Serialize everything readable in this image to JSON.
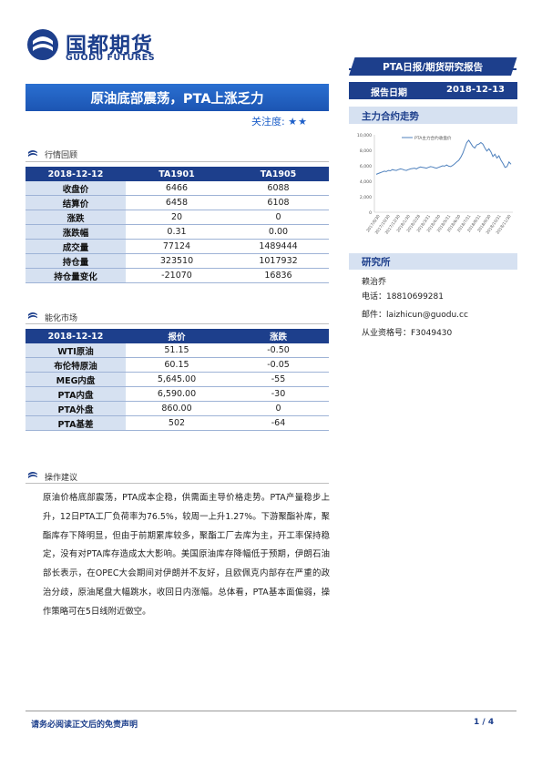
{
  "brand": {
    "name_cn": "国都期货",
    "name_en": "GUODU FUTURES"
  },
  "header": {
    "report_type": "PTA日报/期货研究报告",
    "date_label": "报告日期",
    "date_value": "2018-12-13"
  },
  "title": "原油底部震荡，PTA上涨乏力",
  "attention": {
    "label": "关注度:",
    "stars": "★★"
  },
  "market_review": {
    "section_title": "行情回顾",
    "headers": [
      "2018-12-12",
      "TA1901",
      "TA1905"
    ],
    "rows": [
      {
        "label": "收盘价",
        "v1": "6466",
        "v2": "6088"
      },
      {
        "label": "结算价",
        "v1": "6458",
        "v2": "6108"
      },
      {
        "label": "涨跌",
        "v1": "20",
        "v2": "0"
      },
      {
        "label": "涨跌幅",
        "v1": "0.31",
        "v2": "0.00"
      },
      {
        "label": "成交量",
        "v1": "77124",
        "v2": "1489444"
      },
      {
        "label": "持仓量",
        "v1": "323510",
        "v2": "1017932"
      },
      {
        "label": "持仓量变化",
        "v1": "-21070",
        "v2": "16836"
      }
    ]
  },
  "energy_market": {
    "section_title": "能化市场",
    "headers": [
      "2018-12-12",
      "报价",
      "涨跌"
    ],
    "rows": [
      {
        "label": "WTI原油",
        "v1": "51.15",
        "v2": "-0.50"
      },
      {
        "label": "布伦特原油",
        "v1": "60.15",
        "v2": "-0.05"
      },
      {
        "label": "MEG内盘",
        "v1": "5,645.00",
        "v2": "-55"
      },
      {
        "label": "PTA内盘",
        "v1": "6,590.00",
        "v2": "-30"
      },
      {
        "label": "PTA外盘",
        "v1": "860.00",
        "v2": "0"
      },
      {
        "label": "PTA基差",
        "v1": "502",
        "v2": "-64"
      }
    ]
  },
  "advice": {
    "section_title": "操作建议",
    "text": "原油价格底部震荡，PTA成本企稳，供需面主导价格走势。PTA产量稳步上升，12日PTA工厂负荷率为76.5%，较周一上升1.27%。下游聚酯补库，聚酯库存下降明显，但由于前期累库较多，聚酯工厂去库为主，开工率保持稳定，没有对PTA库存造成太大影响。美国原油库存降幅低于预期，伊朗石油部长表示，在OPEC大会期间对伊朗并不友好，且欧佩克内部存在严重的政治分歧，原油尾盘大幅跳水，收回日内涨幅。总体看，PTA基本面偏弱，操作策略可在5日线附近做空。"
  },
  "chart_section": {
    "title": "主力合约走势"
  },
  "chart_data": {
    "type": "line",
    "title": "",
    "legend": "PTA主力合约收盘价",
    "legend_position": "top",
    "ylim": [
      0,
      10000
    ],
    "yticks": [
      "0",
      "2,000",
      "4,000",
      "6,000",
      "8,000",
      "10,000"
    ],
    "xticks": [
      "2017/8/30",
      "2017/10/30",
      "2017/12/30",
      "2018/1/30",
      "2018/2/28",
      "2018/3/31",
      "2018/4/30",
      "2018/5/31",
      "2018/6/30",
      "2018/7/31",
      "2018/8/31",
      "2018/9/30",
      "2018/10/31",
      "2018/11/30"
    ],
    "grid": false,
    "series": [
      {
        "name": "PTA主力合约收盘价",
        "color": "#4f81bd",
        "values": [
          4900,
          5000,
          5100,
          5200,
          5300,
          5250,
          5400,
          5350,
          5500,
          5450,
          5400,
          5500,
          5600,
          5550,
          5450,
          5400,
          5500,
          5600,
          5650,
          5700,
          5600,
          5750,
          5850,
          5800,
          5750,
          5700,
          5800,
          5900,
          5850,
          5750,
          5700,
          5800,
          5900,
          6000,
          5950,
          6100,
          5950,
          5900,
          6050,
          6250,
          6500,
          6700,
          7100,
          7600,
          8300,
          9000,
          9300,
          8900,
          8500,
          8300,
          8700,
          8800,
          9000,
          8800,
          8300,
          7900,
          8200,
          7800,
          7200,
          7500,
          7000,
          7300,
          6700,
          6300,
          5800,
          5900,
          6500,
          6200
        ]
      }
    ]
  },
  "researcher": {
    "section_title": "研究所",
    "name": "赖治乔",
    "phone": "电话：18810699281",
    "email": "邮件：laizhicun@guodu.cc",
    "license": "从业资格号：F3049430"
  },
  "footer": {
    "disclaimer": "请务必阅读正文后的免责声明",
    "page": "1 / 4"
  }
}
